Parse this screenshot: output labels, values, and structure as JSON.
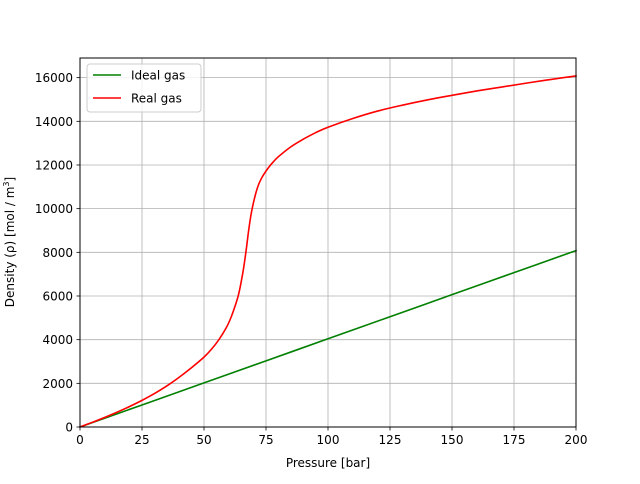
{
  "chart_data": {
    "type": "line",
    "title": "",
    "xlabel": "Pressure [bar]",
    "ylabel_main": "Density (ρ) [mol / m",
    "ylabel_sup": "3",
    "ylabel_tail": "]",
    "xlim": [
      0,
      200
    ],
    "ylim": [
      0,
      16900
    ],
    "x_ticks": [
      0,
      25,
      50,
      75,
      100,
      125,
      150,
      175,
      200
    ],
    "y_ticks": [
      0,
      2000,
      4000,
      6000,
      8000,
      10000,
      12000,
      14000,
      16000
    ],
    "grid": true,
    "legend_position": "top-left",
    "series": [
      {
        "name": "Ideal gas",
        "color": "#008000",
        "x": [
          0,
          25,
          50,
          75,
          100,
          125,
          150,
          175,
          200
        ],
        "y": [
          0,
          1010,
          2020,
          3030,
          4040,
          5050,
          6060,
          7070,
          8080
        ]
      },
      {
        "name": "Real gas",
        "color": "#ff0000",
        "x": [
          0,
          5,
          10,
          15,
          20,
          25,
          30,
          35,
          40,
          45,
          50,
          53,
          56,
          59,
          61,
          63,
          64,
          65,
          66,
          67,
          68,
          69,
          70,
          71,
          72,
          73,
          74,
          76,
          78,
          80,
          85,
          90,
          95,
          100,
          110,
          120,
          130,
          140,
          150,
          160,
          170,
          180,
          190,
          200
        ],
        "y": [
          0,
          215,
          440,
          680,
          940,
          1220,
          1530,
          1880,
          2280,
          2720,
          3200,
          3560,
          4000,
          4550,
          5050,
          5700,
          6100,
          6650,
          7300,
          8100,
          9000,
          9750,
          10300,
          10750,
          11100,
          11350,
          11550,
          11880,
          12150,
          12380,
          12830,
          13180,
          13480,
          13730,
          14130,
          14470,
          14740,
          14980,
          15190,
          15390,
          15570,
          15750,
          15920,
          16080
        ]
      }
    ]
  }
}
